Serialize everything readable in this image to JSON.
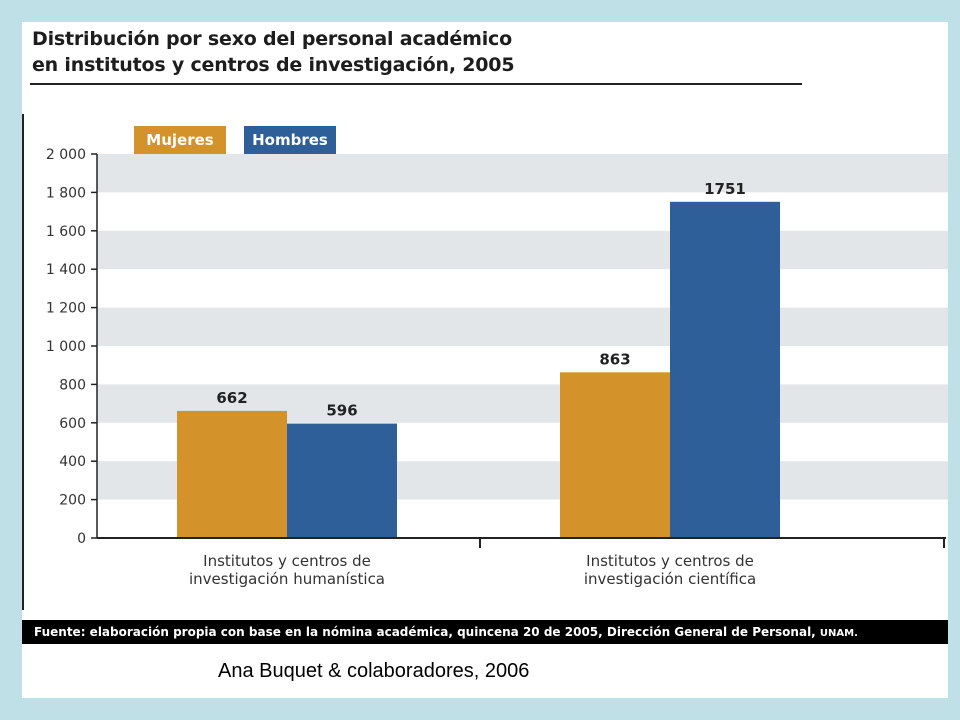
{
  "title_lines": [
    "Distribución por sexo del personal académico",
    "en institutos y centros de investigación, 2005"
  ],
  "source": {
    "label": "Fuente:",
    "text": " elaboración propia con base en la nómina académica, quincena 20 de 2005, Dirección General de Personal, ",
    "org": "UNAM."
  },
  "credit": "Ana Buquet & colaboradores, 2006",
  "colors": {
    "mujeres": "#d4922a",
    "hombres": "#2e5f98",
    "band": "#e3e6e9"
  },
  "chart_data": {
    "type": "bar",
    "title": "Distribución por sexo del personal académico en institutos y centros de investigación, 2005",
    "categories": [
      [
        "Institutos y centros de",
        "investigación humanística"
      ],
      [
        "Institutos y centros de",
        "investigación científica"
      ]
    ],
    "series": [
      {
        "name": "Mujeres",
        "values": [
          662,
          863
        ]
      },
      {
        "name": "Hombres",
        "values": [
          596,
          1751
        ]
      }
    ],
    "yticks": [
      "0",
      "200",
      "400",
      "600",
      "800",
      "1 000",
      "1 200",
      "1 400",
      "1 600",
      "1 800",
      "2 000"
    ],
    "ylim": [
      0,
      2000
    ],
    "grid": "alternating bands",
    "legend": "top-left"
  }
}
